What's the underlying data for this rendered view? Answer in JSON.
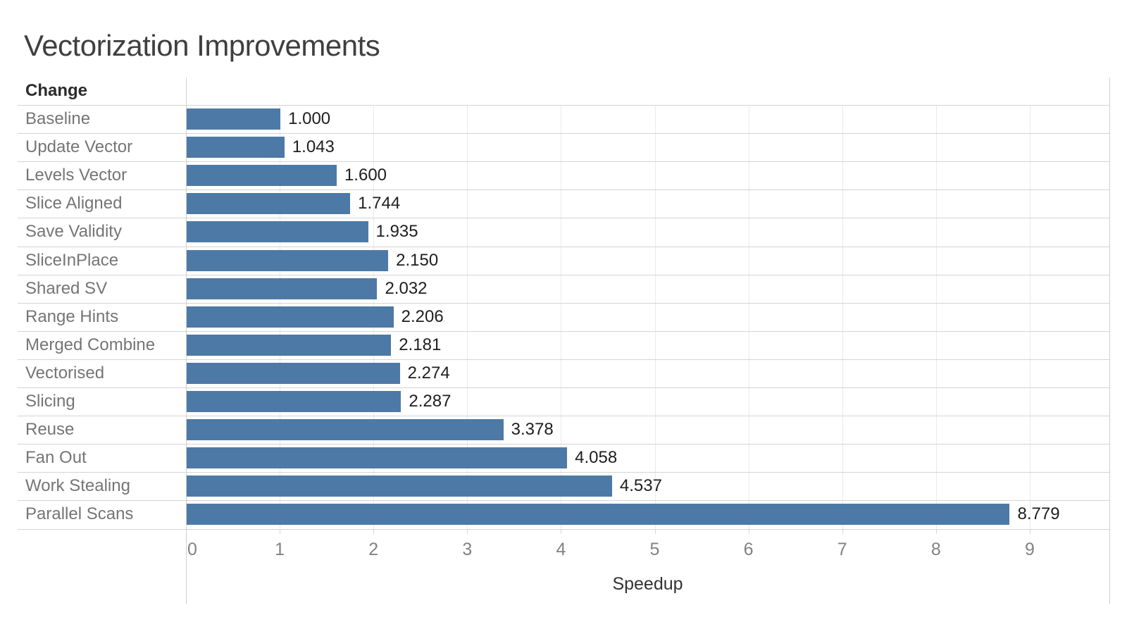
{
  "title": "Vectorization Improvements",
  "column_header": "Change",
  "x_axis": {
    "label": "Speedup",
    "ticks": [
      "0",
      "1",
      "2",
      "3",
      "4",
      "5",
      "6",
      "7",
      "8",
      "9"
    ]
  },
  "chart_data": {
    "type": "bar",
    "orientation": "horizontal",
    "title": "Vectorization Improvements",
    "xlabel": "Speedup",
    "ylabel": "Change",
    "xlim": [
      0,
      9.85
    ],
    "grid": true,
    "legend": false,
    "categories": [
      "Baseline",
      "Update Vector",
      "Levels Vector",
      "Slice Aligned",
      "Save Validity",
      "SliceInPlace",
      "Shared SV",
      "Range Hints",
      "Merged Combine",
      "Vectorised",
      "Slicing",
      "Reuse",
      "Fan Out",
      "Work Stealing",
      "Parallel Scans"
    ],
    "values": [
      1.0,
      1.043,
      1.6,
      1.744,
      1.935,
      2.15,
      2.032,
      2.206,
      2.181,
      2.274,
      2.287,
      3.378,
      4.058,
      4.537,
      8.779
    ],
    "value_labels": [
      "1.000",
      "1.043",
      "1.600",
      "1.744",
      "1.935",
      "2.150",
      "2.032",
      "2.206",
      "2.181",
      "2.274",
      "2.287",
      "3.378",
      "4.058",
      "4.537",
      "8.779"
    ]
  },
  "colors": {
    "bar": "#4d79a6",
    "title_text": "#3f3f3f",
    "header_text": "#2b2b2b",
    "row_label_text": "#757575",
    "value_label_text": "#1e1e1e",
    "tick_label_text": "#828282",
    "axis_label_text": "#333333",
    "divider_line": "#d4d4d4",
    "grid_line": "#ebebeb",
    "axis_line": "#cfcfcf",
    "tick_mark": "#d9d9d9",
    "background": "#ffffff"
  }
}
